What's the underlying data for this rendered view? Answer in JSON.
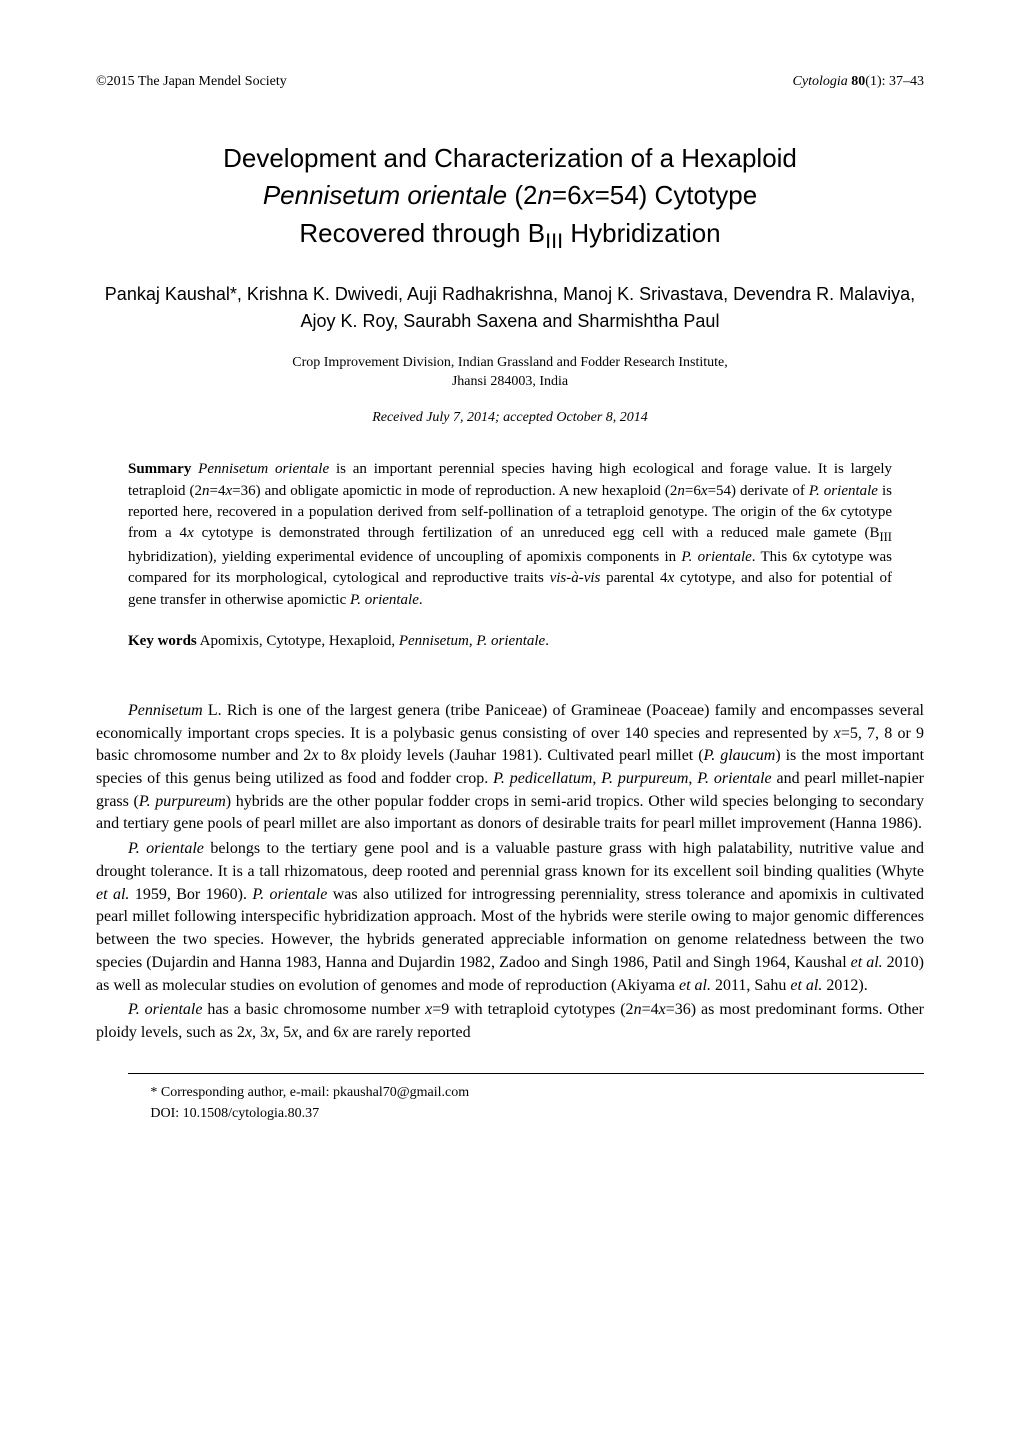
{
  "header": {
    "copyright": "©2015 The Japan Mendel Society",
    "journal_italic": "Cytologia ",
    "volume_bold": "80",
    "issue_pages": "(1): 37–43"
  },
  "title": {
    "line1_a": "Development and Characterization of a Hexaploid ",
    "line2_i": "Pennisetum orientale",
    "line2_b": " (2",
    "line2_c": "n",
    "line2_d": "=6",
    "line2_e": "x",
    "line2_f": "=54) Cytotype ",
    "line3_a": "Recovered through B",
    "line3_sub": "III",
    "line3_b": " Hybridization"
  },
  "authors": "Pankaj Kaushal*, Krishna K. Dwivedi, Auji Radhakrishna, Manoj K. Srivastava, Devendra R. Malaviya, Ajoy K. Roy, Saurabh Saxena and Sharmishtha Paul",
  "affiliation_l1": "Crop Improvement Division, Indian Grassland and Fodder Research Institute,",
  "affiliation_l2": "Jhansi 284003, India",
  "dates": "Received July 7, 2014; accepted October 8, 2014",
  "summary": {
    "label": "Summary",
    "t1": "   ",
    "i1": "Pennisetum orientale",
    "t2": " is an important perennial species having high ecological and forage value. It is largely tetraploid (2",
    "i2": "n",
    "t3": "=4",
    "i3": "x",
    "t4": "=36) and obligate apomictic in mode of reproduction. A new hexaploid (2",
    "i4": "n",
    "t5": "=6",
    "i5": "x",
    "t6": "=54) derivate of ",
    "i6": "P. orientale",
    "t7": " is reported here, recovered in a population derived from self-pollination of a tetraploid genotype. The origin of the 6",
    "i7": "x",
    "t8": " cytotype from a 4",
    "i8": "x",
    "t9": " cytotype is demonstrated through fertilization of an unreduced egg cell with a reduced male gamete (B",
    "sub1": "III",
    "t10": " hybridization), yielding experimental evidence of uncoupling of apomixis components in ",
    "i9": "P. orientale",
    "t11": ". This 6",
    "i10": "x",
    "t12": " cytotype was compared for its morphological, cytological and reproductive traits ",
    "i11": "vis-à-vis",
    "t13": " parental 4",
    "i12": "x",
    "t14": " cytotype, and also for potential of gene transfer in otherwise apomictic ",
    "i13": "P. orientale",
    "t15": "."
  },
  "keywords": {
    "label": "Key words",
    "t1": "   Apomixis, Cytotype, Hexaploid, ",
    "i1": "Pennisetum",
    "t2": ", ",
    "i2": "P. orientale",
    "t3": "."
  },
  "para1": {
    "i1": "Pennisetum",
    "t1": " L. Rich is one of the largest genera (tribe Paniceae) of Gramineae (Poaceae) family and encompasses several economically important crops species. It is a polybasic genus consisting of over 140 species and represented by ",
    "i2": "x",
    "t2": "=5, 7, 8 or 9 basic chromosome number and 2",
    "i3": "x",
    "t3": " to 8",
    "i4": "x",
    "t4": " ploidy levels (Jauhar 1981). Cultivated pearl millet (",
    "i5": "P. glaucum",
    "t5": ") is the most important species of this genus being utilized as food and fodder crop. ",
    "i6": "P. pedicellatum",
    "t6": ", ",
    "i7": "P. purpureum",
    "t7": ", ",
    "i8": "P. orientale",
    "t8": " and pearl millet-napier grass (",
    "i9": "P. purpureum",
    "t9": ") hybrids are the other popular fodder crops in semi-arid tropics. Other wild species belonging to secondary and tertiary gene pools of pearl millet are also important as donors of desirable traits for pearl millet improvement (Hanna 1986)."
  },
  "para2": {
    "i1": "P. orientale",
    "t1": " belongs to the tertiary gene pool and is a valuable pasture grass with high palatability, nutritive value and drought tolerance. It is a tall rhizomatous, deep rooted and perennial grass known for its excellent soil binding qualities (Whyte ",
    "i2": "et al.",
    "t2": " 1959, Bor 1960). ",
    "i3": "P. orientale",
    "t3": " was also utilized for introgressing perenniality, stress tolerance and apomixis in cultivated pearl millet following interspecific hybridization approach. Most of the hybrids were sterile owing to major genomic differences between the two species. However, the hybrids generated appreciable information on genome relatedness between the two species (Dujardin and Hanna 1983, Hanna and Dujardin 1982, Zadoo and Singh 1986, Patil and Singh 1964, Kaushal ",
    "i4": "et al.",
    "t4": " 2010) as well as molecular studies on evolution of genomes and mode of reproduction (Akiyama ",
    "i5": "et al.",
    "t5": " 2011, Sahu ",
    "i6": "et al.",
    "t6": " 2012)."
  },
  "para3": {
    "i1": "P. orientale",
    "t1": " has a basic chromosome number ",
    "i2": "x",
    "t2": "=9 with tetraploid cytotypes (2",
    "i3": "n",
    "t3": "=4",
    "i4": "x",
    "t4": "=36) as most predominant forms. Other ploidy levels, such as 2",
    "i5": "x",
    "t5": ", 3",
    "i6": "x",
    "t6": ", 5",
    "i7": "x",
    "t7": ", and 6",
    "i8": "x",
    "t8": " are rarely reported"
  },
  "footnotes": {
    "f1": "* Corresponding author, e-mail: pkaushal70@gmail.com",
    "f2": "DOI: 10.1508/cytologia.80.37"
  }
}
